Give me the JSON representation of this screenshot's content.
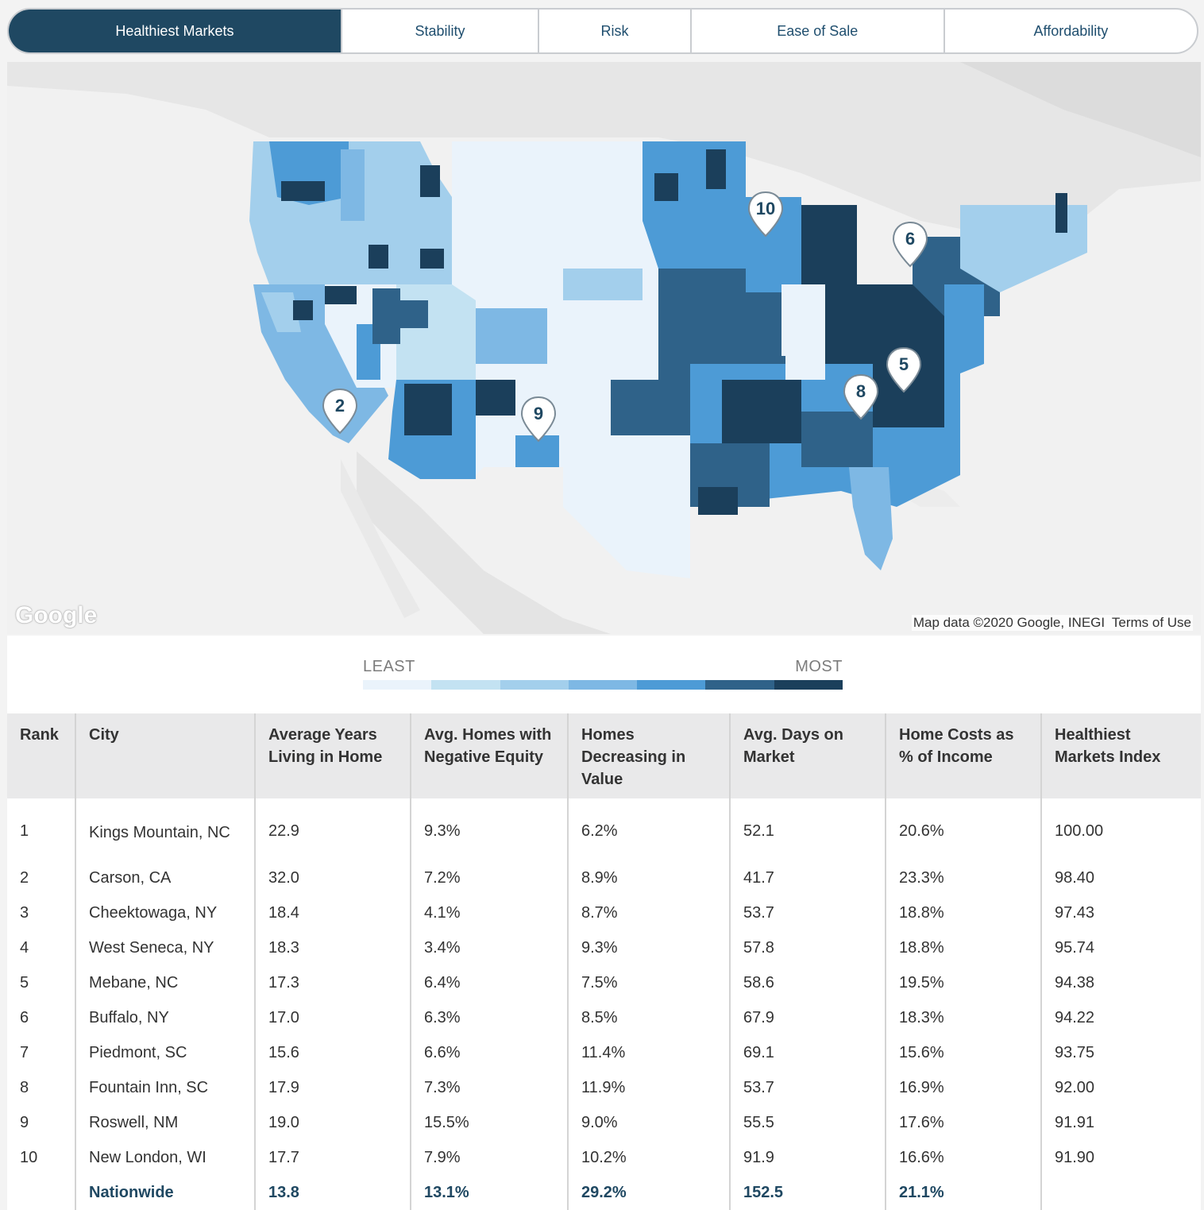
{
  "tabs": [
    {
      "label": "Healthiest Markets",
      "active": true
    },
    {
      "label": "Stability",
      "active": false
    },
    {
      "label": "Risk",
      "active": false
    },
    {
      "label": "Ease of Sale",
      "active": false
    },
    {
      "label": "Affordability",
      "active": false
    }
  ],
  "map": {
    "logo_text": "Google",
    "attribution": "Map data ©2020 Google, INEGI",
    "terms": "Terms of Use",
    "markers": [
      {
        "label": "10"
      },
      {
        "label": "6"
      },
      {
        "label": "5"
      },
      {
        "label": "8"
      },
      {
        "label": "2"
      },
      {
        "label": "9"
      }
    ]
  },
  "legend": {
    "least": "LEAST",
    "most": "MOST",
    "colors": [
      "#eaf3fb",
      "#c3e2f2",
      "#a3cfec",
      "#7eb8e4",
      "#4d9bd6",
      "#2f6289",
      "#1b3f5b"
    ]
  },
  "table": {
    "headers": {
      "rank": "Rank",
      "city": "City",
      "years": "Average Years Living in Home",
      "equity": "Avg. Homes with Negative Equity",
      "decreasing": "Homes Decreasing in Value",
      "days": "Avg. Days on Market",
      "costs": "Home Costs as % of Income",
      "index": "Healthiest Markets Index"
    },
    "rows": [
      {
        "rank": "1",
        "city": "Kings Mountain, NC",
        "years": "22.9",
        "equity": "9.3%",
        "decreasing": "6.2%",
        "days": "52.1",
        "costs": "20.6%",
        "index": "100.00"
      },
      {
        "rank": "2",
        "city": "Carson, CA",
        "years": "32.0",
        "equity": "7.2%",
        "decreasing": "8.9%",
        "days": "41.7",
        "costs": "23.3%",
        "index": "98.40"
      },
      {
        "rank": "3",
        "city": "Cheektowaga, NY",
        "years": "18.4",
        "equity": "4.1%",
        "decreasing": "8.7%",
        "days": "53.7",
        "costs": "18.8%",
        "index": "97.43"
      },
      {
        "rank": "4",
        "city": "West Seneca, NY",
        "years": "18.3",
        "equity": "3.4%",
        "decreasing": "9.3%",
        "days": "57.8",
        "costs": "18.8%",
        "index": "95.74"
      },
      {
        "rank": "5",
        "city": "Mebane, NC",
        "years": "17.3",
        "equity": "6.4%",
        "decreasing": "7.5%",
        "days": "58.6",
        "costs": "19.5%",
        "index": "94.38"
      },
      {
        "rank": "6",
        "city": "Buffalo, NY",
        "years": "17.0",
        "equity": "6.3%",
        "decreasing": "8.5%",
        "days": "67.9",
        "costs": "18.3%",
        "index": "94.22"
      },
      {
        "rank": "7",
        "city": "Piedmont, SC",
        "years": "15.6",
        "equity": "6.6%",
        "decreasing": "11.4%",
        "days": "69.1",
        "costs": "15.6%",
        "index": "93.75"
      },
      {
        "rank": "8",
        "city": "Fountain Inn, SC",
        "years": "17.9",
        "equity": "7.3%",
        "decreasing": "11.9%",
        "days": "53.7",
        "costs": "16.9%",
        "index": "92.00"
      },
      {
        "rank": "9",
        "city": "Roswell, NM",
        "years": "19.0",
        "equity": "15.5%",
        "decreasing": "9.0%",
        "days": "55.5",
        "costs": "17.6%",
        "index": "91.91"
      },
      {
        "rank": "10",
        "city": "New London, WI",
        "years": "17.7",
        "equity": "7.9%",
        "decreasing": "10.2%",
        "days": "91.9",
        "costs": "16.6%",
        "index": "91.90"
      }
    ],
    "nationwide": {
      "rank": "",
      "city": "Nationwide",
      "years": "13.8",
      "equity": "13.1%",
      "decreasing": "29.2%",
      "days": "152.5",
      "costs": "21.1%",
      "index": ""
    }
  }
}
